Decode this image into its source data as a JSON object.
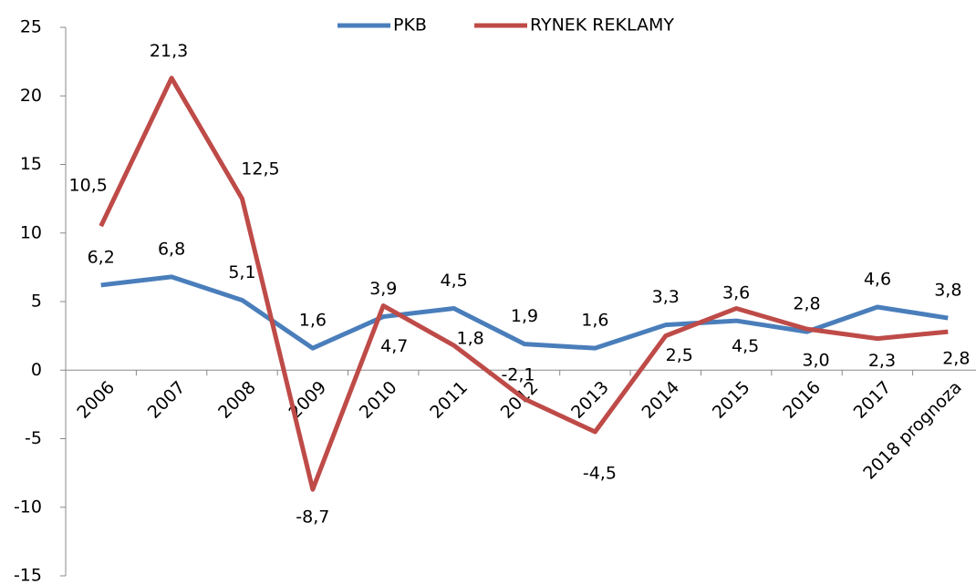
{
  "chart_data": {
    "type": "line",
    "categories": [
      "2006",
      "2007",
      "2008",
      "2009",
      "2010",
      "2011",
      "2012",
      "2013",
      "2014",
      "2015",
      "2016",
      "2017",
      "2018 prognoza"
    ],
    "series": [
      {
        "name": "PKB",
        "color": "#4a7ebb",
        "label_color": "#2f5b8c",
        "values": [
          6.2,
          6.8,
          5.1,
          1.6,
          3.9,
          4.5,
          1.9,
          1.6,
          3.3,
          3.6,
          2.8,
          4.6,
          3.8
        ],
        "value_labels": [
          "6,2",
          "6,8",
          "5,1",
          "1,6",
          "3,9",
          "4,5",
          "1,9",
          "1,6",
          "3,3",
          "3,6",
          "2,8",
          "4,6",
          "3,8"
        ]
      },
      {
        "name": "RYNEK REKLAMY",
        "color": "#be4b48",
        "label_color": "#c0201e",
        "values": [
          10.5,
          21.3,
          12.5,
          -8.7,
          4.7,
          1.8,
          -2.1,
          -4.5,
          2.5,
          4.5,
          3.0,
          2.3,
          2.8
        ],
        "value_labels": [
          "10,5",
          "21,3",
          "12,5",
          "-8,7",
          "4,7",
          "1,8",
          "-2,1",
          "-4,5",
          "2,5",
          "4,5",
          "3,0",
          "2,3",
          "2,8"
        ]
      }
    ],
    "ylim": [
      -15,
      25
    ],
    "yticks": [
      -15,
      -10,
      -5,
      0,
      5,
      10,
      15,
      20,
      25
    ],
    "legend": "top"
  }
}
